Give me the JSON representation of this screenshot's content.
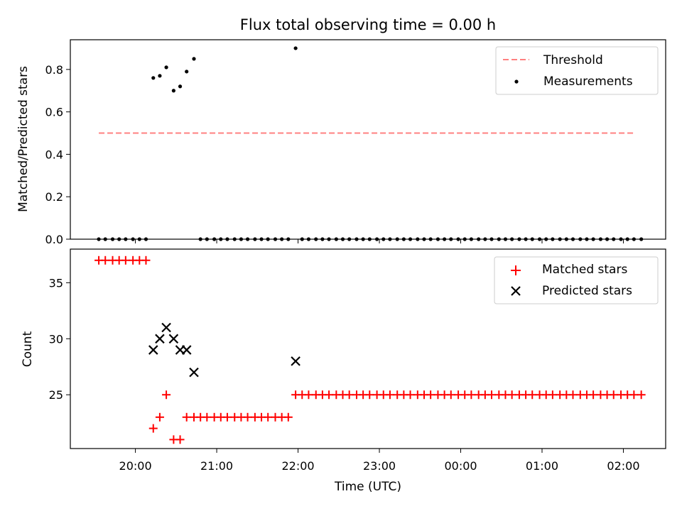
{
  "chart_data": {
    "type": "scatter",
    "title": "Flux total observing time = 0.00 h",
    "xlabel": "Time (UTC)",
    "x_ticks": [
      "20:00",
      "21:00",
      "22:00",
      "23:00",
      "00:00",
      "01:00",
      "02:00"
    ],
    "x_tick_hours": [
      20,
      21,
      22,
      23,
      24,
      25,
      26
    ],
    "xlim_hours": [
      19.2,
      26.52
    ],
    "top": {
      "ylabel": "Matched/Predicted stars",
      "ylim": [
        0,
        0.94
      ],
      "yticks": [
        "0.0",
        "0.2",
        "0.4",
        "0.6",
        "0.8"
      ],
      "ytick_values": [
        0,
        0.2,
        0.4,
        0.6,
        0.8
      ],
      "threshold": {
        "name": "Threshold",
        "value": 0.5,
        "x_range_hours": [
          19.55,
          26.15
        ],
        "color": "#ff8080"
      },
      "measurements": {
        "name": "Measurements",
        "color": "#000000",
        "points": [
          [
            19.55,
            0
          ],
          [
            19.63,
            0
          ],
          [
            19.72,
            0
          ],
          [
            19.8,
            0
          ],
          [
            19.88,
            0
          ],
          [
            19.97,
            0
          ],
          [
            20.05,
            0
          ],
          [
            20.13,
            0
          ],
          [
            20.22,
            0.76
          ],
          [
            20.3,
            0.77
          ],
          [
            20.38,
            0.81
          ],
          [
            20.47,
            0.7
          ],
          [
            20.55,
            0.72
          ],
          [
            20.63,
            0.79
          ],
          [
            20.72,
            0.85
          ],
          [
            20.8,
            0
          ],
          [
            20.88,
            0
          ],
          [
            20.97,
            0
          ],
          [
            21.05,
            0
          ],
          [
            21.13,
            0
          ],
          [
            21.22,
            0
          ],
          [
            21.3,
            0
          ],
          [
            21.38,
            0
          ],
          [
            21.47,
            0
          ],
          [
            21.55,
            0
          ],
          [
            21.63,
            0
          ],
          [
            21.72,
            0
          ],
          [
            21.8,
            0
          ],
          [
            21.88,
            0
          ],
          [
            21.97,
            0.9
          ],
          [
            22.05,
            0
          ],
          [
            22.13,
            0
          ],
          [
            22.22,
            0
          ],
          [
            22.3,
            0
          ],
          [
            22.38,
            0
          ],
          [
            22.47,
            0
          ],
          [
            22.55,
            0
          ],
          [
            22.63,
            0
          ],
          [
            22.72,
            0
          ],
          [
            22.8,
            0
          ],
          [
            22.88,
            0
          ],
          [
            22.97,
            0
          ],
          [
            23.05,
            0
          ],
          [
            23.13,
            0
          ],
          [
            23.22,
            0
          ],
          [
            23.3,
            0
          ],
          [
            23.38,
            0
          ],
          [
            23.47,
            0
          ],
          [
            23.55,
            0
          ],
          [
            23.63,
            0
          ],
          [
            23.72,
            0
          ],
          [
            23.8,
            0
          ],
          [
            23.88,
            0
          ],
          [
            23.97,
            0
          ],
          [
            24.05,
            0
          ],
          [
            24.13,
            0
          ],
          [
            24.22,
            0
          ],
          [
            24.3,
            0
          ],
          [
            24.38,
            0
          ],
          [
            24.47,
            0
          ],
          [
            24.55,
            0
          ],
          [
            24.63,
            0
          ],
          [
            24.72,
            0
          ],
          [
            24.8,
            0
          ],
          [
            24.88,
            0
          ],
          [
            24.97,
            0
          ],
          [
            25.05,
            0
          ],
          [
            25.13,
            0
          ],
          [
            25.22,
            0
          ],
          [
            25.3,
            0
          ],
          [
            25.38,
            0
          ],
          [
            25.47,
            0
          ],
          [
            25.55,
            0
          ],
          [
            25.63,
            0
          ],
          [
            25.72,
            0
          ],
          [
            25.8,
            0
          ],
          [
            25.88,
            0
          ],
          [
            25.97,
            0
          ],
          [
            26.05,
            0
          ],
          [
            26.13,
            0
          ],
          [
            26.22,
            0
          ]
        ]
      }
    },
    "bottom": {
      "ylabel": "Count",
      "ylim": [
        20.2,
        38
      ],
      "yticks": [
        "25",
        "30",
        "35"
      ],
      "ytick_values": [
        25,
        30,
        35
      ],
      "matched": {
        "name": "Matched stars",
        "color": "#ff0000",
        "points": [
          [
            19.55,
            37
          ],
          [
            19.63,
            37
          ],
          [
            19.72,
            37
          ],
          [
            19.8,
            37
          ],
          [
            19.88,
            37
          ],
          [
            19.97,
            37
          ],
          [
            20.05,
            37
          ],
          [
            20.13,
            37
          ],
          [
            20.22,
            22
          ],
          [
            20.3,
            23
          ],
          [
            20.38,
            25
          ],
          [
            20.47,
            21
          ],
          [
            20.55,
            21
          ],
          [
            20.63,
            23
          ],
          [
            20.72,
            23
          ],
          [
            20.8,
            23
          ],
          [
            20.88,
            23
          ],
          [
            20.97,
            23
          ],
          [
            21.05,
            23
          ],
          [
            21.13,
            23
          ],
          [
            21.22,
            23
          ],
          [
            21.3,
            23
          ],
          [
            21.38,
            23
          ],
          [
            21.47,
            23
          ],
          [
            21.55,
            23
          ],
          [
            21.63,
            23
          ],
          [
            21.72,
            23
          ],
          [
            21.8,
            23
          ],
          [
            21.88,
            23
          ],
          [
            21.97,
            25
          ],
          [
            22.05,
            25
          ],
          [
            22.13,
            25
          ],
          [
            22.22,
            25
          ],
          [
            22.3,
            25
          ],
          [
            22.38,
            25
          ],
          [
            22.47,
            25
          ],
          [
            22.55,
            25
          ],
          [
            22.63,
            25
          ],
          [
            22.72,
            25
          ],
          [
            22.8,
            25
          ],
          [
            22.88,
            25
          ],
          [
            22.97,
            25
          ],
          [
            23.05,
            25
          ],
          [
            23.13,
            25
          ],
          [
            23.22,
            25
          ],
          [
            23.3,
            25
          ],
          [
            23.38,
            25
          ],
          [
            23.47,
            25
          ],
          [
            23.55,
            25
          ],
          [
            23.63,
            25
          ],
          [
            23.72,
            25
          ],
          [
            23.8,
            25
          ],
          [
            23.88,
            25
          ],
          [
            23.97,
            25
          ],
          [
            24.05,
            25
          ],
          [
            24.13,
            25
          ],
          [
            24.22,
            25
          ],
          [
            24.3,
            25
          ],
          [
            24.38,
            25
          ],
          [
            24.47,
            25
          ],
          [
            24.55,
            25
          ],
          [
            24.63,
            25
          ],
          [
            24.72,
            25
          ],
          [
            24.8,
            25
          ],
          [
            24.88,
            25
          ],
          [
            24.97,
            25
          ],
          [
            25.05,
            25
          ],
          [
            25.13,
            25
          ],
          [
            25.22,
            25
          ],
          [
            25.3,
            25
          ],
          [
            25.38,
            25
          ],
          [
            25.47,
            25
          ],
          [
            25.55,
            25
          ],
          [
            25.63,
            25
          ],
          [
            25.72,
            25
          ],
          [
            25.8,
            25
          ],
          [
            25.88,
            25
          ],
          [
            25.97,
            25
          ],
          [
            26.05,
            25
          ],
          [
            26.13,
            25
          ],
          [
            26.22,
            25
          ]
        ]
      },
      "predicted": {
        "name": "Predicted stars",
        "color": "#000000",
        "points": [
          [
            20.22,
            29
          ],
          [
            20.3,
            30
          ],
          [
            20.38,
            31
          ],
          [
            20.47,
            30
          ],
          [
            20.55,
            29
          ],
          [
            20.63,
            29
          ],
          [
            20.72,
            27
          ],
          [
            21.97,
            28
          ]
        ]
      }
    },
    "legend_placement": "top-right",
    "grid": false
  }
}
